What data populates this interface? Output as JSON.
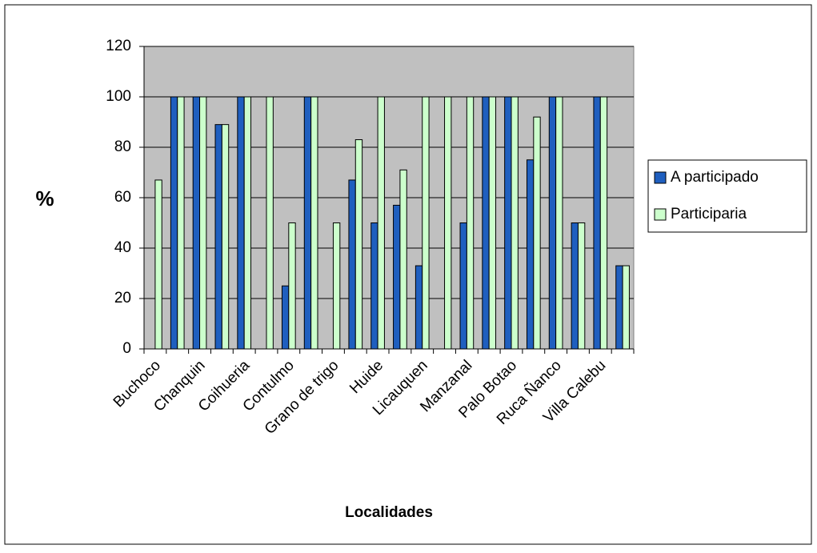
{
  "chart_data": {
    "type": "bar",
    "x_label": "Localidades",
    "y_label": "%",
    "categories": [
      "Buchoco",
      null,
      "Chanquin",
      null,
      "Coihueria",
      null,
      "Contulmo",
      null,
      "Grano de trigo",
      null,
      "Huide",
      null,
      "Licauquen",
      null,
      "Manzanal",
      null,
      "Palo Botao",
      null,
      "Ruca Ñanco",
      null,
      "Villa Calebu",
      null
    ],
    "series": [
      {
        "name": "A participado",
        "color": "#1f5fbf",
        "values": [
          0,
          100,
          100,
          89,
          100,
          0,
          25,
          100,
          0,
          67,
          50,
          57,
          33,
          0,
          50,
          100,
          100,
          75,
          100,
          50,
          100,
          33
        ]
      },
      {
        "name": "Participaria",
        "color": "#ccffcc",
        "values": [
          67,
          100,
          100,
          89,
          100,
          100,
          50,
          100,
          50,
          83,
          100,
          71,
          100,
          100,
          100,
          100,
          100,
          92,
          100,
          50,
          100,
          33
        ]
      }
    ],
    "ylim": [
      0,
      120
    ],
    "yticks": [
      0,
      20,
      40,
      60,
      80,
      100,
      120
    ],
    "grid": true,
    "legend": "right"
  }
}
